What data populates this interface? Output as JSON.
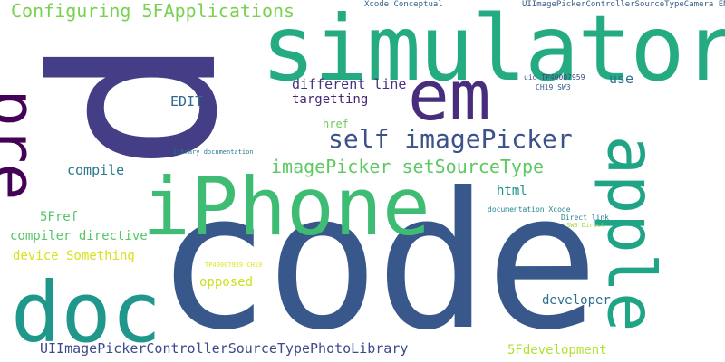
{
  "words": {
    "p": {
      "text": "p",
      "color": "#433e85"
    },
    "code": {
      "text": "code",
      "color": "#38588c"
    },
    "simulator": {
      "text": "simulator",
      "color": "#25ab82"
    },
    "iphone": {
      "text": "iPhone",
      "color": "#3fbc73"
    },
    "em": {
      "text": "em",
      "color": "#472d7b"
    },
    "apple": {
      "text": "apple",
      "color": "#20a486"
    },
    "doc": {
      "text": "doc",
      "color": "#1f988b"
    },
    "pre": {
      "text": "pre",
      "color": "#440256"
    },
    "self_imagepicker": {
      "text": "self imagePicker",
      "color": "#3b528b"
    },
    "imagepicker_setsourcetype": {
      "text": "imagePicker setSourceType",
      "color": "#5ec962"
    },
    "configuring_5fapplications": {
      "text": "Configuring 5FApplications",
      "color": "#7ad151"
    },
    "uiimagepicker_photolibrary": {
      "text": "UIImagePickerControllerSourceTypePhotoLibrary",
      "color": "#3e4989"
    },
    "different_line": {
      "text": "different line",
      "color": "#46327e"
    },
    "targetting": {
      "text": "targetting",
      "color": "#482677"
    },
    "edit": {
      "text": "EDIT",
      "color": "#31688e"
    },
    "use": {
      "text": "use",
      "color": "#2c728e"
    },
    "href": {
      "text": "href",
      "color": "#6ccd5a"
    },
    "compile": {
      "text": "compile",
      "color": "#2a788e"
    },
    "html": {
      "text": "html",
      "color": "#21918c"
    },
    "ref_5f": {
      "text": "5Fref",
      "color": "#52c569"
    },
    "compiler_directive": {
      "text": "compiler directive",
      "color": "#56c667"
    },
    "device_something": {
      "text": "device Something",
      "color": "#d8e219"
    },
    "opposed": {
      "text": "opposed",
      "color": "#cde11d"
    },
    "developer": {
      "text": "developer",
      "color": "#2d708e"
    },
    "dev_5f": {
      "text": "5Fdevelopment",
      "color": "#b5de2b"
    },
    "xcode_conceptual": {
      "text": "Xcode Conceptual",
      "color": "#33638d"
    },
    "uiimagepicker_camera": {
      "text": "UIImagePickerControllerSourceTypeCamera END",
      "color": "#375b8d"
    },
    "uid_tp": {
      "text": "uid TP40007959",
      "color": "#3f4788"
    },
    "ch19_sw3": {
      "text": "CH19 SW3",
      "color": "#38598c"
    },
    "library_documentation": {
      "text": "library documentation",
      "color": "#287c8e"
    },
    "documentation_xcode": {
      "text": "documentation Xcode",
      "color": "#24878e"
    },
    "direct_link": {
      "text": "Direct link",
      "color": "#26828e"
    },
    "sw3_direct": {
      "text": "SW3 Direct",
      "color": "#9dd93b"
    },
    "tp_ch19": {
      "text": "TP40007959 CH19",
      "color": "#e2e418"
    }
  }
}
